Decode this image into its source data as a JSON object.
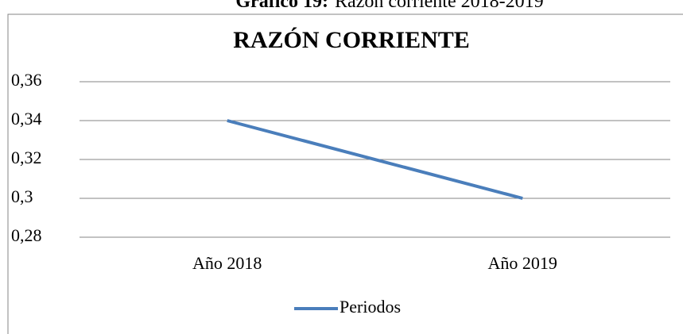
{
  "caption": {
    "label": "Gráfico 19:",
    "text": "Razón corriente 2018-2019"
  },
  "chart_data": {
    "type": "line",
    "title": "RAZÓN CORRIENTE",
    "categories": [
      "Año 2018",
      "Año 2019"
    ],
    "series": [
      {
        "name": "Periodos",
        "color": "#4a7ebb",
        "values": [
          0.34,
          0.3
        ]
      }
    ],
    "ylim": [
      0.28,
      0.36
    ],
    "yticks": [
      {
        "value": 0.28,
        "label": "0,28"
      },
      {
        "value": 0.3,
        "label": "0,3"
      },
      {
        "value": 0.32,
        "label": "0,32"
      },
      {
        "value": 0.34,
        "label": "0,34"
      },
      {
        "value": 0.36,
        "label": "0,36"
      }
    ],
    "grid": true,
    "legend": "bottom"
  }
}
